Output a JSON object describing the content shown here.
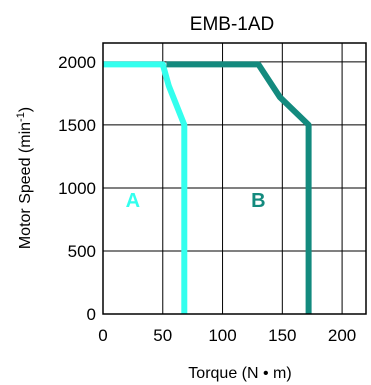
{
  "chart_data": {
    "type": "line",
    "title": "EMB-1AD",
    "xlabel": "Torque (N • m)",
    "ylabel_main": "Motor  Speed (min",
    "ylabel_exp": "-1",
    "ylabel_close": ")",
    "xlim": [
      0,
      220
    ],
    "ylim": [
      0,
      2150
    ],
    "x_ticks": [
      0,
      50,
      100,
      150,
      200
    ],
    "y_ticks": [
      0,
      500,
      1000,
      1500,
      2000
    ],
    "grid": true,
    "series": [
      {
        "name": "A",
        "color": "#33ffee",
        "points": [
          [
            0,
            1980
          ],
          [
            50,
            1980
          ],
          [
            55,
            1810
          ],
          [
            68,
            1500
          ],
          [
            68,
            0
          ]
        ]
      },
      {
        "name": "B",
        "color": "#138a7e",
        "points": [
          [
            53,
            1980
          ],
          [
            130,
            1980
          ],
          [
            148,
            1720
          ],
          [
            172,
            1500
          ],
          [
            172,
            0
          ]
        ]
      }
    ],
    "region_labels": [
      {
        "text": "A",
        "x": 25,
        "y": 850,
        "color": "#33ffee"
      },
      {
        "text": "B",
        "x": 130,
        "y": 850,
        "color": "#138a7e"
      }
    ]
  }
}
